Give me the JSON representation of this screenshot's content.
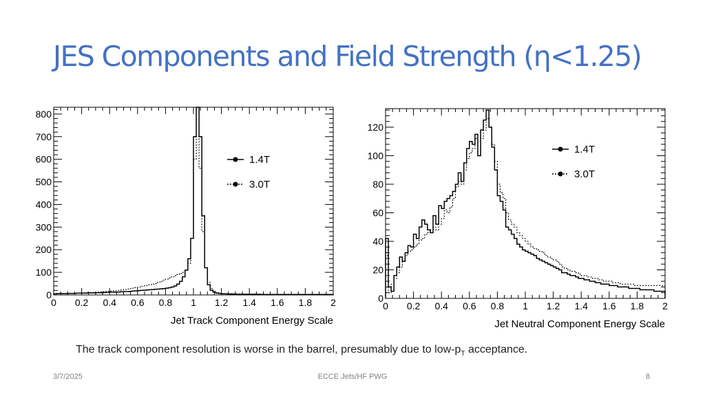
{
  "slide": {
    "title": "JES Components and Field Strength (η<1.25)",
    "caption": {
      "before": "The track component resolution is worse in the barrel, presumably due to low-p",
      "sub": "T",
      "after": " acceptance."
    },
    "footer": {
      "date": "3/7/2025",
      "center": "ECCE Jets/HF PWG",
      "page": "8"
    }
  },
  "chart_data": [
    {
      "type": "line",
      "style": "step-histogram",
      "xlabel": "Jet Track Component Energy Scale",
      "ylabel": "",
      "xlim": [
        0,
        2
      ],
      "ylim": [
        0,
        830
      ],
      "xticks": [
        "0",
        "0.2",
        "0.4",
        "0.6",
        "0.8",
        "1",
        "1.2",
        "1.4",
        "1.6",
        "1.8",
        "2"
      ],
      "yticks": [
        "0",
        "100",
        "200",
        "300",
        "400",
        "500",
        "600",
        "700",
        "800"
      ],
      "legend_position": "right-middle",
      "grid": false,
      "bin_width": 0.02,
      "series": [
        {
          "name": "1.4T",
          "line": "solid",
          "values": [
            5,
            6,
            6,
            6,
            6,
            7,
            7,
            7,
            8,
            8,
            8,
            8,
            9,
            9,
            9,
            10,
            10,
            10,
            11,
            11,
            12,
            12,
            13,
            13,
            14,
            15,
            15,
            16,
            17,
            18,
            19,
            20,
            21,
            22,
            23,
            24,
            25,
            26,
            27,
            28,
            30,
            32,
            35,
            40,
            48,
            60,
            80,
            110,
            160,
            250,
            700,
            830,
            700,
            350,
            120,
            45,
            20,
            12,
            8,
            6,
            5,
            5,
            4,
            4,
            4,
            3,
            3,
            3,
            3,
            3,
            3,
            3,
            3,
            3,
            2,
            2,
            2,
            2,
            2,
            2,
            2,
            2,
            2,
            2,
            2,
            2,
            2,
            2,
            2,
            2,
            2,
            2,
            2,
            2,
            2,
            2,
            2,
            2,
            2,
            2
          ]
        },
        {
          "name": "3.0T",
          "line": "dotted",
          "values": [
            4,
            5,
            5,
            6,
            6,
            6,
            7,
            7,
            8,
            8,
            9,
            9,
            10,
            10,
            11,
            12,
            13,
            14,
            15,
            16,
            17,
            18,
            19,
            20,
            22,
            24,
            26,
            28,
            30,
            32,
            35,
            38,
            40,
            42,
            45,
            48,
            50,
            55,
            60,
            65,
            70,
            75,
            80,
            85,
            90,
            95,
            100,
            110,
            140,
            250,
            600,
            700,
            560,
            280,
            120,
            55,
            28,
            16,
            10,
            8,
            6,
            6,
            5,
            5,
            4,
            4,
            4,
            4,
            3,
            3,
            3,
            3,
            3,
            3,
            3,
            3,
            3,
            3,
            3,
            3,
            3,
            3,
            3,
            3,
            3,
            3,
            3,
            3,
            3,
            3,
            3,
            3,
            3,
            3,
            3,
            3,
            3,
            3,
            3,
            3
          ]
        }
      ]
    },
    {
      "type": "line",
      "style": "step-histogram",
      "xlabel": "Jet Neutral Component Energy Scale",
      "ylabel": "",
      "xlim": [
        0,
        2
      ],
      "ylim": [
        0,
        133
      ],
      "xticks": [
        "0",
        "0.2",
        "0.4",
        "0.6",
        "0.8",
        "1",
        "1.2",
        "1.4",
        "1.6",
        "1.8",
        "2"
      ],
      "yticks": [
        "0",
        "20",
        "40",
        "60",
        "80",
        "100",
        "120"
      ],
      "legend_position": "top-right",
      "grid": false,
      "bin_width": 0.02,
      "series": [
        {
          "name": "1.4T",
          "line": "solid",
          "values": [
            42,
            8,
            5,
            16,
            22,
            29,
            26,
            32,
            37,
            36,
            45,
            42,
            50,
            55,
            52,
            48,
            46,
            58,
            52,
            65,
            63,
            68,
            70,
            72,
            75,
            80,
            88,
            82,
            95,
            105,
            110,
            108,
            115,
            100,
            118,
            125,
            132,
            120,
            106,
            90,
            72,
            68,
            62,
            50,
            48,
            45,
            42,
            38,
            36,
            34,
            33,
            32,
            31,
            30,
            28,
            27,
            26,
            25,
            24,
            23,
            22,
            21,
            20,
            18,
            18,
            17,
            16,
            16,
            15,
            14,
            14,
            13,
            13,
            12,
            12,
            11,
            11,
            10,
            10,
            10,
            9,
            9,
            9,
            8,
            8,
            8,
            8,
            7,
            7,
            7,
            7,
            6,
            6,
            6,
            6,
            6,
            5,
            5,
            5,
            5
          ]
        },
        {
          "name": "3.0T",
          "line": "dotted",
          "values": [
            30,
            4,
            10,
            14,
            18,
            22,
            26,
            30,
            33,
            34,
            36,
            38,
            41,
            42,
            45,
            46,
            48,
            50,
            48,
            52,
            56,
            62,
            60,
            64,
            70,
            78,
            82,
            80,
            90,
            98,
            102,
            105,
            112,
            100,
            112,
            118,
            126,
            120,
            108,
            96,
            80,
            74,
            70,
            60,
            55,
            52,
            50,
            46,
            44,
            42,
            40,
            38,
            36,
            35,
            34,
            33,
            32,
            30,
            29,
            28,
            27,
            26,
            24,
            22,
            21,
            20,
            19,
            19,
            18,
            17,
            16,
            16,
            15,
            15,
            14,
            14,
            13,
            13,
            12,
            12,
            12,
            11,
            11,
            11,
            10,
            10,
            10,
            10,
            10,
            9,
            9,
            9,
            9,
            9,
            9,
            9,
            9,
            9,
            9,
            9
          ]
        }
      ]
    }
  ],
  "colors": {
    "title": "#4472c4",
    "plot_line": "#000000",
    "footer": "#7f7f7f"
  }
}
